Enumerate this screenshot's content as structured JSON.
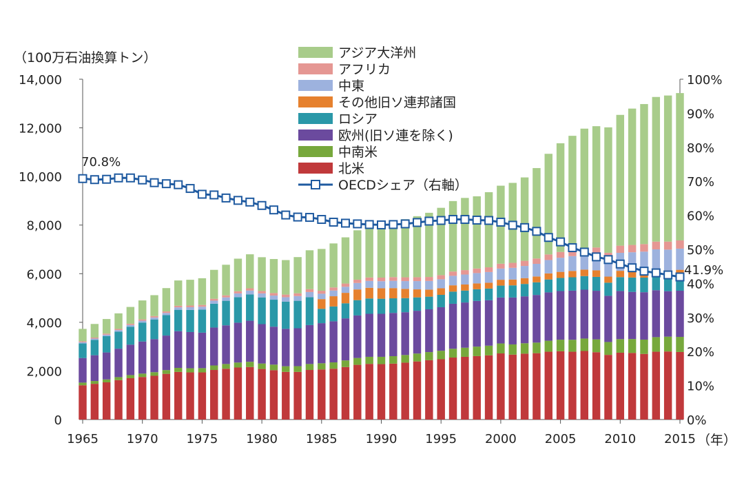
{
  "chart_data": {
    "type": "bar",
    "stacked": true,
    "y_unit_label": "（100万石油換算トン）",
    "x_unit_label": "（年）",
    "ylim": [
      0,
      14000
    ],
    "y_ticks": [
      "0",
      "2,000",
      "4,000",
      "6,000",
      "8,000",
      "10,000",
      "12,000",
      "14,000"
    ],
    "y2lim": [
      0,
      100
    ],
    "y2_ticks": [
      "0%",
      "10%",
      "20%",
      "30%",
      "40%",
      "50%",
      "60%",
      "70%",
      "80%",
      "90%",
      "100%"
    ],
    "x_tick_labels": [
      "1965",
      "1970",
      "1975",
      "1980",
      "1985",
      "1990",
      "1995",
      "2000",
      "2005",
      "2010",
      "2015"
    ],
    "x": [
      1965,
      1966,
      1967,
      1968,
      1969,
      1970,
      1971,
      1972,
      1973,
      1974,
      1975,
      1976,
      1977,
      1978,
      1979,
      1980,
      1981,
      1982,
      1983,
      1984,
      1985,
      1986,
      1987,
      1988,
      1989,
      1990,
      1991,
      1992,
      1993,
      1994,
      1995,
      1996,
      1997,
      1998,
      1999,
      2000,
      2001,
      2002,
      2003,
      2004,
      2005,
      2006,
      2007,
      2008,
      2009,
      2010,
      2011,
      2012,
      2013,
      2014,
      2015
    ],
    "series": [
      {
        "name": "北米",
        "color": "#c0393b",
        "values": [
          1410,
          1470,
          1530,
          1620,
          1700,
          1750,
          1800,
          1880,
          1960,
          1940,
          1940,
          2040,
          2090,
          2140,
          2160,
          2080,
          2030,
          1960,
          1960,
          2040,
          2060,
          2090,
          2160,
          2250,
          2290,
          2280,
          2300,
          2340,
          2390,
          2440,
          2480,
          2550,
          2580,
          2610,
          2640,
          2720,
          2670,
          2710,
          2730,
          2790,
          2810,
          2790,
          2820,
          2770,
          2660,
          2750,
          2740,
          2700,
          2790,
          2800,
          2780
        ]
      },
      {
        "name": "中南米",
        "color": "#77a83c",
        "values": [
          110,
          115,
          120,
          125,
          130,
          140,
          148,
          155,
          165,
          170,
          175,
          185,
          195,
          205,
          215,
          225,
          230,
          232,
          235,
          245,
          255,
          262,
          272,
          282,
          290,
          300,
          307,
          315,
          325,
          335,
          350,
          362,
          375,
          390,
          398,
          410,
          420,
          428,
          435,
          452,
          475,
          492,
          512,
          528,
          530,
          558,
          572,
          588,
          600,
          610,
          620
        ]
      },
      {
        "name": "欧州(旧ソ連を除く)",
        "color": "#6b4a9e",
        "values": [
          1010,
          1060,
          1110,
          1170,
          1250,
          1320,
          1360,
          1420,
          1510,
          1490,
          1460,
          1560,
          1590,
          1640,
          1690,
          1620,
          1560,
          1540,
          1560,
          1600,
          1650,
          1690,
          1730,
          1750,
          1770,
          1770,
          1780,
          1760,
          1760,
          1760,
          1790,
          1850,
          1860,
          1880,
          1870,
          1890,
          1930,
          1930,
          1960,
          1990,
          2000,
          2020,
          2010,
          2000,
          1900,
          1980,
          1940,
          1950,
          1930,
          1870,
          1900
        ]
      },
      {
        "name": "ロシア",
        "color": "#2a98a8",
        "values": [
          600,
          630,
          670,
          700,
          740,
          780,
          810,
          840,
          880,
          910,
          950,
          980,
          1010,
          1050,
          1080,
          1100,
          1110,
          1120,
          1130,
          1150,
          590,
          610,
          620,
          630,
          630,
          620,
          600,
          580,
          550,
          520,
          510,
          500,
          490,
          480,
          480,
          490,
          500,
          510,
          520,
          530,
          540,
          550,
          560,
          570,
          540,
          570,
          590,
          600,
          590,
          590,
          590
        ]
      },
      {
        "name": "その他旧ソ連邦諸国",
        "color": "#e6812e",
        "values": [
          0,
          0,
          0,
          0,
          0,
          0,
          0,
          0,
          0,
          0,
          0,
          0,
          0,
          0,
          0,
          0,
          0,
          0,
          0,
          0,
          400,
          420,
          430,
          440,
          440,
          430,
          420,
          380,
          330,
          290,
          270,
          260,
          250,
          240,
          240,
          240,
          240,
          240,
          240,
          250,
          250,
          260,
          265,
          270,
          250,
          260,
          270,
          270,
          270,
          270,
          270
        ]
      },
      {
        "name": "中東",
        "color": "#9db2de",
        "values": [
          50,
          55,
          60,
          65,
          70,
          75,
          80,
          90,
          100,
          110,
          115,
          125,
          140,
          155,
          160,
          165,
          170,
          180,
          195,
          210,
          220,
          235,
          250,
          265,
          280,
          290,
          300,
          320,
          340,
          355,
          370,
          390,
          410,
          425,
          440,
          460,
          480,
          500,
          520,
          550,
          580,
          610,
          640,
          670,
          700,
          740,
          770,
          800,
          820,
          850,
          870
        ]
      },
      {
        "name": "アフリカ",
        "color": "#e59793",
        "values": [
          40,
          42,
          45,
          48,
          52,
          55,
          58,
          62,
          66,
          70,
          73,
          78,
          83,
          88,
          93,
          98,
          103,
          108,
          113,
          118,
          123,
          128,
          133,
          138,
          143,
          148,
          152,
          156,
          160,
          165,
          170,
          176,
          182,
          188,
          194,
          200,
          206,
          212,
          220,
          230,
          240,
          250,
          260,
          270,
          280,
          295,
          300,
          310,
          320,
          330,
          340
        ]
      },
      {
        "name": "アジア大洋州",
        "color": "#a8cc8a",
        "values": [
          510,
          560,
          600,
          640,
          690,
          780,
          860,
          960,
          1040,
          1060,
          1100,
          1190,
          1260,
          1340,
          1400,
          1390,
          1400,
          1420,
          1490,
          1600,
          1720,
          1810,
          1900,
          2030,
          2150,
          2250,
          2300,
          2390,
          2510,
          2640,
          2770,
          2900,
          2970,
          2970,
          3090,
          3210,
          3290,
          3430,
          3720,
          4140,
          4470,
          4700,
          4900,
          4990,
          5160,
          5380,
          5610,
          5760,
          5950,
          6010,
          6060
        ]
      }
    ],
    "line": {
      "name": "OECDシェア（右軸）",
      "color": "#1f5aa0",
      "axis": "right",
      "values": [
        70.8,
        70.5,
        70.6,
        71.0,
        71.0,
        70.4,
        69.6,
        69.3,
        69.0,
        67.9,
        66.2,
        66.0,
        65.1,
        64.4,
        63.9,
        62.9,
        61.6,
        60.1,
        59.5,
        59.4,
        58.8,
        58.0,
        57.7,
        57.5,
        57.3,
        57.2,
        57.3,
        57.5,
        57.9,
        58.3,
        58.5,
        58.8,
        58.8,
        58.6,
        58.5,
        58.0,
        57.1,
        56.4,
        55.3,
        53.5,
        52.2,
        50.5,
        49.2,
        47.8,
        47.0,
        45.7,
        44.6,
        43.6,
        43.1,
        42.5,
        41.9
      ]
    },
    "annotations": [
      {
        "text": "70.8%",
        "x": 1965
      },
      {
        "text": "41.9%",
        "x": 2015
      }
    ]
  }
}
